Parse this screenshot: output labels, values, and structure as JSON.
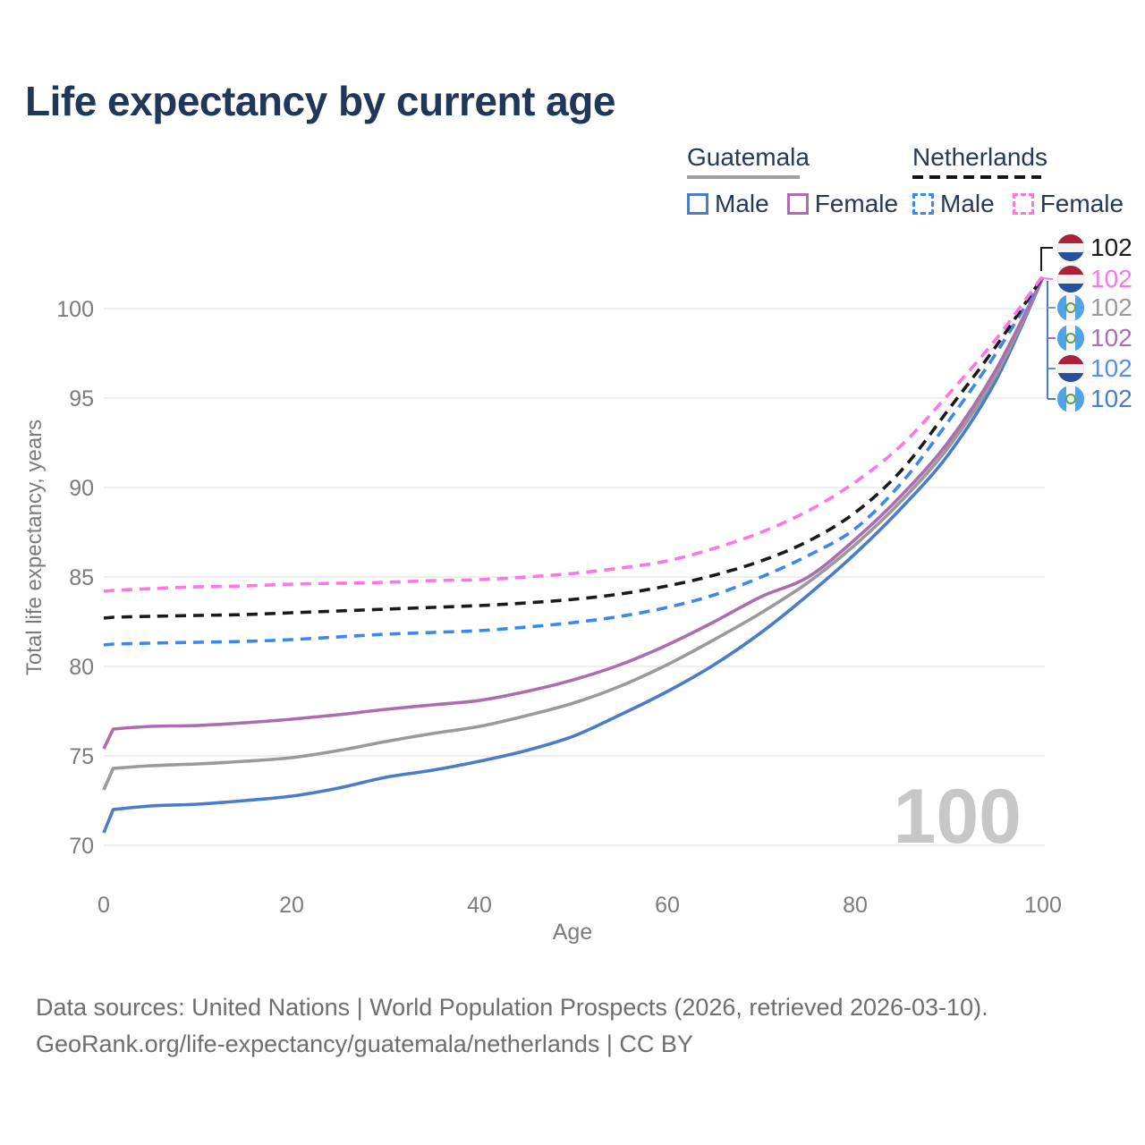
{
  "title": "Life expectancy by current age",
  "legend": {
    "groups": [
      {
        "name": "Guatemala",
        "line_style": "solid",
        "underline_color": "#9e9e9e",
        "items": [
          {
            "label": "Male",
            "color": "#4a7dc9",
            "dashed": false
          },
          {
            "label": "Female",
            "color": "#ad6cae",
            "dashed": false
          }
        ]
      },
      {
        "name": "Netherlands",
        "line_style": "dashed",
        "underline_color": "#141414",
        "items": [
          {
            "label": "Male",
            "color": "#3b87f0",
            "dashed": true
          },
          {
            "label": "Female",
            "color": "#ff75e8",
            "dashed": true
          }
        ]
      }
    ]
  },
  "chart_data": {
    "type": "line",
    "title": "Life expectancy by current age",
    "xlabel": "Age",
    "ylabel": "Total life expectancy, years",
    "x_ticks": [
      0,
      20,
      40,
      60,
      80,
      100
    ],
    "y_ticks": [
      70,
      75,
      80,
      85,
      90,
      95,
      100
    ],
    "xlim": [
      0,
      100
    ],
    "ylim": [
      70,
      102
    ],
    "grid": "horizontal",
    "watermark": "100",
    "x": [
      0,
      1,
      5,
      10,
      15,
      20,
      25,
      30,
      35,
      40,
      45,
      50,
      55,
      60,
      65,
      70,
      75,
      80,
      85,
      90,
      95,
      100
    ],
    "series": [
      {
        "name": "Guatemala Male",
        "color": "#4a7dc9",
        "dash": false,
        "values": [
          70.7,
          72.0,
          72.2,
          72.3,
          72.5,
          72.75,
          73.2,
          73.8,
          74.2,
          74.7,
          75.3,
          76.1,
          77.3,
          78.6,
          80.1,
          81.9,
          84.0,
          86.3,
          88.9,
          91.9,
          96.0,
          101.75
        ]
      },
      {
        "name": "Guatemala Both sexes",
        "color": "#9a9a9a",
        "dash": false,
        "values": [
          73.1,
          74.3,
          74.45,
          74.55,
          74.7,
          74.9,
          75.3,
          75.8,
          76.25,
          76.65,
          77.25,
          77.95,
          78.9,
          80.1,
          81.5,
          83.0,
          84.7,
          86.8,
          89.3,
          92.3,
          96.3,
          101.75
        ]
      },
      {
        "name": "Guatemala Female",
        "color": "#ad6cae",
        "dash": false,
        "values": [
          75.4,
          76.5,
          76.65,
          76.7,
          76.85,
          77.05,
          77.3,
          77.6,
          77.85,
          78.1,
          78.6,
          79.25,
          80.1,
          81.2,
          82.5,
          83.9,
          85.0,
          87.1,
          89.6,
          92.6,
          96.6,
          101.75
        ]
      },
      {
        "name": "Netherlands Male",
        "color": "#3b87f0",
        "dash": true,
        "values": [
          81.2,
          81.25,
          81.3,
          81.35,
          81.4,
          81.5,
          81.65,
          81.8,
          81.9,
          82.0,
          82.2,
          82.45,
          82.8,
          83.3,
          84.0,
          85.0,
          86.2,
          87.7,
          90.3,
          93.75,
          97.5,
          101.8
        ]
      },
      {
        "name": "Netherlands Both sexes",
        "color": "#1a1a1a",
        "dash": true,
        "values": [
          82.7,
          82.75,
          82.8,
          82.85,
          82.9,
          83.0,
          83.1,
          83.2,
          83.3,
          83.4,
          83.55,
          83.75,
          84.05,
          84.5,
          85.1,
          85.9,
          87.0,
          88.6,
          91.0,
          94.4,
          97.9,
          101.8
        ]
      },
      {
        "name": "Netherlands Female",
        "color": "#ff75e8",
        "dash": true,
        "values": [
          84.2,
          84.25,
          84.35,
          84.45,
          84.5,
          84.6,
          84.65,
          84.7,
          84.8,
          84.85,
          85.0,
          85.2,
          85.5,
          85.9,
          86.6,
          87.5,
          88.7,
          90.3,
          92.4,
          95.25,
          98.3,
          101.85
        ]
      }
    ],
    "end_labels": [
      {
        "country": "nl",
        "series": "Netherlands Both sexes",
        "value": "102",
        "color": "#1a1a1a"
      },
      {
        "country": "nl",
        "series": "Netherlands Female",
        "value": "102",
        "color": "#ff75e8"
      },
      {
        "country": "gt",
        "series": "Guatemala Both sexes",
        "value": "102",
        "color": "#9a9a9a"
      },
      {
        "country": "gt",
        "series": "Guatemala Female",
        "value": "102",
        "color": "#a86fb0"
      },
      {
        "country": "nl",
        "series": "Netherlands Male",
        "value": "102",
        "color": "#5590e4"
      },
      {
        "country": "gt",
        "series": "Guatemala Male",
        "value": "102",
        "color": "#4a7dc9"
      }
    ]
  },
  "footer": {
    "line1": "Data sources: United Nations | World Population Prospects (2026, retrieved 2026-03-10).",
    "line2": "GeoRank.org/life-expectancy/guatemala/netherlands | CC BY"
  }
}
